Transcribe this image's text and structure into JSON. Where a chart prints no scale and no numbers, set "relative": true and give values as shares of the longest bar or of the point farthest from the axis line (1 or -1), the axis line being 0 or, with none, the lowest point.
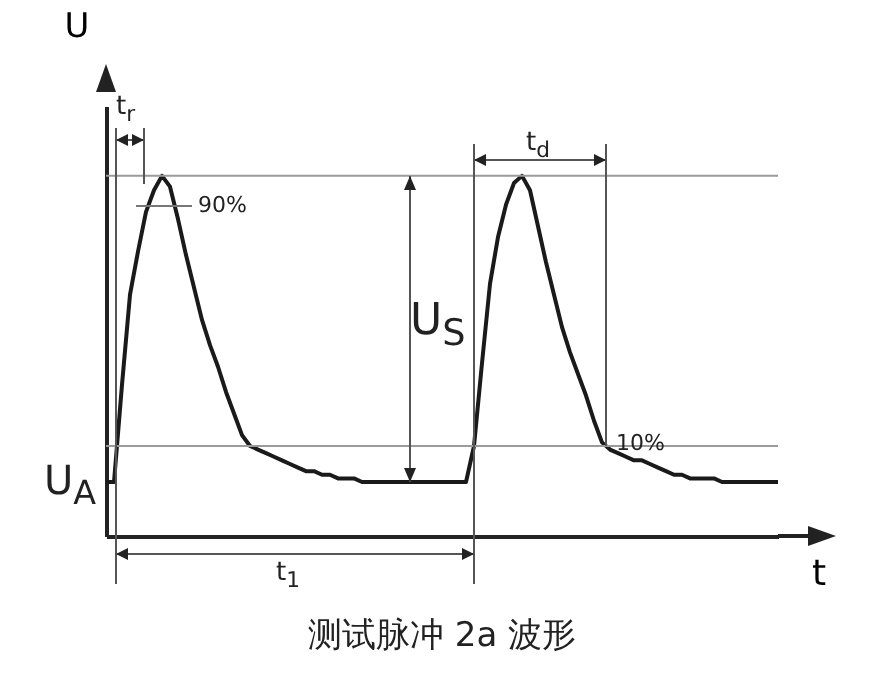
{
  "chart_data": {
    "type": "line",
    "title": "测试脉冲 2a 波形",
    "xlabel": "t",
    "ylabel": "U",
    "relative": true,
    "grid": false,
    "legend": false,
    "categories": [
      null,
      null,
      null,
      null,
      null,
      null,
      null,
      null,
      null,
      null,
      null,
      null,
      null,
      null,
      null,
      null,
      null,
      null,
      null,
      null,
      null,
      null,
      null,
      null,
      null,
      null,
      null,
      null,
      null,
      null,
      null,
      null,
      null,
      null,
      null,
      null,
      null,
      null,
      null,
      null,
      null,
      null,
      null,
      null,
      null,
      null,
      null,
      null,
      null,
      null,
      null,
      null,
      null,
      null,
      null,
      null,
      null,
      null,
      null,
      null,
      null,
      null,
      null,
      null,
      null,
      null,
      null,
      null,
      null,
      null,
      null,
      null,
      null,
      null,
      null,
      null,
      null,
      null,
      null,
      null,
      null,
      null,
      null,
      null,
      null
    ],
    "series": [
      {
        "color": "#1a1a1a",
        "values": [
          0.15,
          0.15,
          0.42,
          0.67,
          0.79,
          0.9,
          0.96,
          1,
          0.97,
          0.88,
          0.78,
          0.69,
          0.6,
          0.53,
          0.47,
          0.4,
          0.34,
          0.28,
          0.25,
          0.24,
          0.23,
          0.22,
          0.21,
          0.2,
          0.19,
          0.18,
          0.18,
          0.17,
          0.17,
          0.16,
          0.16,
          0.16,
          0.15,
          0.15,
          0.15,
          0.15,
          0.15,
          0.15,
          0.15,
          0.15,
          0.15,
          0.15,
          0.15,
          0.15,
          0.15,
          0.15,
          0.25,
          0.48,
          0.7,
          0.83,
          0.92,
          0.98,
          1,
          0.96,
          0.86,
          0.76,
          0.67,
          0.58,
          0.51,
          0.45,
          0.39,
          0.32,
          0.26,
          0.24,
          0.23,
          0.22,
          0.21,
          0.21,
          0.2,
          0.19,
          0.18,
          0.17,
          0.17,
          0.16,
          0.16,
          0.16,
          0.16,
          0.15,
          0.15,
          0.15,
          0.15,
          0.15,
          0.15,
          0.15,
          0.15
        ]
      }
    ],
    "ref_lines": [
      {
        "axis": "y",
        "value": 1,
        "color": "#9a9a9a"
      },
      {
        "axis": "y",
        "value": 0.25,
        "color": "#9a9a9a"
      }
    ],
    "annotations": [
      "t$_{r}$",
      "90%",
      "U$_{S}$",
      "U$_{A}$",
      "t$_{d}$",
      "10%",
      "t$_{1}$"
    ]
  }
}
